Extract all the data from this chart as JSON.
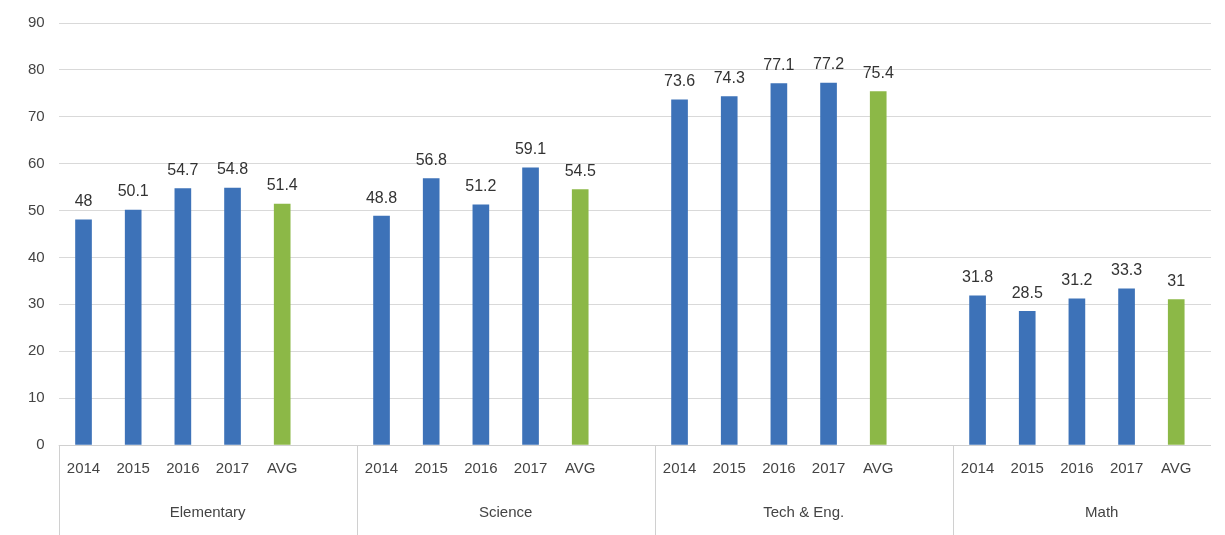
{
  "chart_data": {
    "type": "bar",
    "categories": [
      "2014",
      "2015",
      "2016",
      "2017",
      "AVG",
      "2014",
      "2015",
      "2016",
      "2017",
      "AVG",
      "2014",
      "2015",
      "2016",
      "2017",
      "AVG",
      "2014",
      "2015",
      "2016",
      "2017",
      "AVG"
    ],
    "values": [
      48,
      50.1,
      54.7,
      54.8,
      51.4,
      48.8,
      56.8,
      51.2,
      59.1,
      54.5,
      73.6,
      74.3,
      77.1,
      77.2,
      75.4,
      31.8,
      28.5,
      31.2,
      33.3,
      31
    ],
    "colors": [
      "#3d72b8",
      "#3d72b8",
      "#3d72b8",
      "#3d72b8",
      "#8cb847",
      "#3d72b8",
      "#3d72b8",
      "#3d72b8",
      "#3d72b8",
      "#8cb847",
      "#3d72b8",
      "#3d72b8",
      "#3d72b8",
      "#3d72b8",
      "#8cb847",
      "#3d72b8",
      "#3d72b8",
      "#3d72b8",
      "#3d72b8",
      "#8cb847"
    ],
    "annotations": [
      "Elementary",
      "Science",
      "Tech & Eng.",
      "Math"
    ],
    "ylim": [
      0,
      90
    ],
    "yticks": [
      0,
      10,
      20,
      30,
      40,
      50,
      60,
      70,
      80,
      90
    ],
    "grid": "y",
    "data_labels": true,
    "legend": false
  }
}
